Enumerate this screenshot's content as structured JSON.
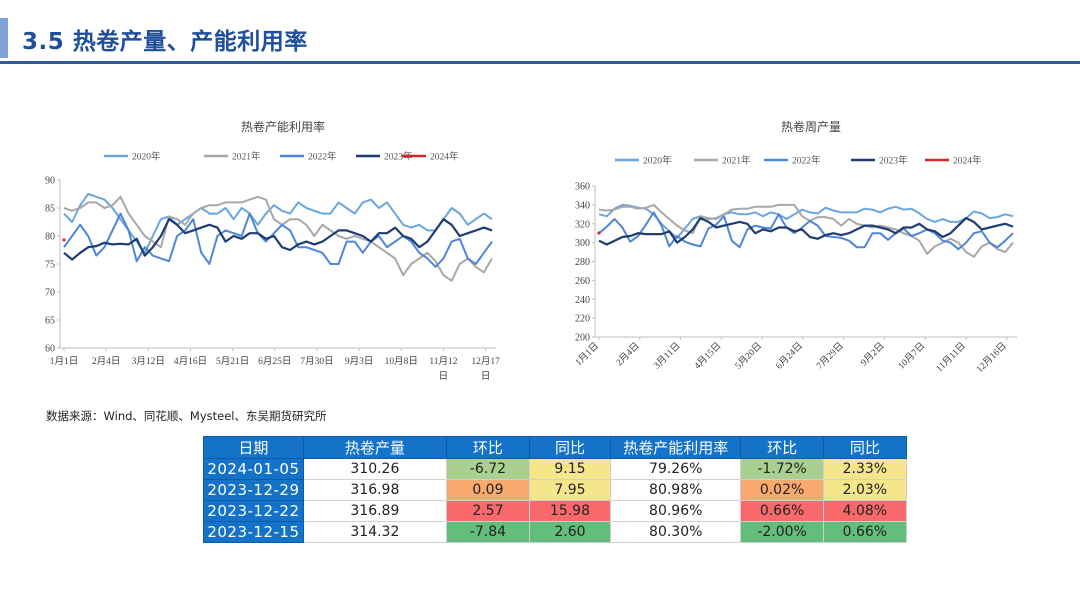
{
  "header": {
    "title": "3.5 热卷产量、产能利用率"
  },
  "source": "数据来源：Wind、同花顺、Mysteel、东吴期货研究所",
  "colors": {
    "s2020": "#6aa6de",
    "s2021": "#a8a8a8",
    "s2022": "#4f86d8",
    "s2023": "#1f3d73",
    "s2024": "#d62728",
    "green": "#63be7b",
    "lightGreen": "#a9d08e",
    "yellow": "#f5e68c",
    "orange": "#f8a96e",
    "red": "#f8696b",
    "header": "#1572c9"
  },
  "chart_data": [
    {
      "type": "line",
      "title": "热卷产能利用率",
      "ylim": [
        60,
        90
      ],
      "yticks": [
        60,
        65,
        70,
        75,
        80,
        85,
        90
      ],
      "xticks": [
        "1月1日",
        "2月4日",
        "3月12日",
        "4月16日",
        "5月21日",
        "6月25日",
        "7月30日",
        "9月3日",
        "10月8日",
        "11月12",
        "12月17"
      ],
      "xticks_line2": [
        "",
        "",
        "",
        "",
        "",
        "",
        "",
        "",
        "",
        "日",
        "日"
      ],
      "legend": [
        "2020年",
        "2021年",
        "2022年",
        "2023年",
        "2024年"
      ],
      "series": [
        {
          "name": "2020年",
          "values": [
            84,
            82.5,
            85.5,
            87.5,
            87,
            86.5,
            85,
            83,
            81,
            79,
            77,
            80,
            83,
            83.5,
            82,
            83,
            84,
            85,
            84,
            84,
            85,
            83,
            85,
            84,
            82,
            84,
            85.5,
            84.5,
            84,
            86,
            85,
            84.5,
            84,
            84,
            86,
            85,
            84,
            86,
            86.5,
            85,
            86,
            84,
            82,
            81.5,
            82,
            81,
            81,
            83,
            85,
            84,
            82,
            83,
            84,
            83
          ]
        },
        {
          "name": "2021年",
          "values": [
            85,
            84.5,
            85,
            86,
            86,
            85,
            85.5,
            87,
            84,
            82,
            80,
            79,
            78,
            83.5,
            83,
            82,
            84,
            85,
            85.5,
            85.5,
            86,
            86,
            86,
            86.5,
            87,
            86.5,
            83,
            82,
            83,
            83,
            82,
            80,
            82,
            81,
            80,
            79.5,
            80,
            79.5,
            79,
            78,
            77,
            76,
            73,
            75,
            76,
            77,
            75.5,
            73,
            72,
            75,
            76,
            74.5,
            73.5,
            76
          ]
        },
        {
          "name": "2022年",
          "values": [
            78,
            80,
            82,
            80,
            76.5,
            78,
            81,
            84,
            81,
            75.5,
            78,
            76.5,
            76,
            75.5,
            80,
            81,
            83,
            77,
            75,
            80,
            81,
            80.5,
            80,
            84,
            80.5,
            79,
            80.5,
            82,
            81,
            78,
            78,
            77.5,
            77,
            75,
            75,
            79,
            79,
            77,
            79,
            80,
            78,
            79,
            80,
            79,
            77,
            76,
            74.5,
            76,
            79,
            79.5,
            76,
            75,
            77,
            79
          ]
        },
        {
          "name": "2023年",
          "values": [
            77,
            75.8,
            77,
            78,
            78.2,
            78.8,
            78.5,
            78.6,
            78.5,
            79.5,
            76.5,
            78,
            80,
            83,
            82,
            80.5,
            81,
            81.5,
            82,
            81.5,
            79,
            80,
            79.5,
            80.5,
            80.5,
            79.5,
            80,
            78,
            77.5,
            78.5,
            79,
            78.5,
            79,
            80,
            81,
            81,
            80.5,
            80,
            79,
            80.5,
            80.5,
            81.5,
            80,
            79.5,
            78,
            79,
            81,
            83,
            82,
            80,
            80.5,
            81,
            81.5,
            81
          ]
        },
        {
          "name": "2024年",
          "values": [
            79.3
          ]
        }
      ]
    },
    {
      "type": "line",
      "title": "热卷周产量",
      "ylim": [
        200,
        360
      ],
      "yticks": [
        200,
        220,
        240,
        260,
        280,
        300,
        320,
        340,
        360
      ],
      "xticks": [
        "1月1日",
        "2月4日",
        "3月11日",
        "4月15日",
        "5月20日",
        "6月24日",
        "7月29日",
        "9月2日",
        "10月7日",
        "11月11日",
        "12月16日"
      ],
      "legend": [
        "2020年",
        "2021年",
        "2022年",
        "2023年",
        "2024年"
      ],
      "series": [
        {
          "name": "2020年",
          "values": [
            330,
            328,
            336,
            340,
            339,
            337,
            336,
            330,
            320,
            312,
            305,
            315,
            325,
            328,
            325,
            326,
            330,
            332,
            330,
            330,
            332,
            328,
            332,
            330,
            325,
            330,
            335,
            332,
            331,
            337,
            334,
            332,
            332,
            332,
            336,
            335,
            332,
            336,
            338,
            335,
            336,
            331,
            325,
            322,
            325,
            322,
            322,
            326,
            333,
            331,
            326,
            327,
            330,
            328
          ]
        },
        {
          "name": "2021年",
          "values": [
            335,
            334,
            335,
            338,
            338,
            336,
            337,
            340,
            332,
            325,
            318,
            313,
            310,
            328,
            326,
            325,
            330,
            335,
            336,
            336,
            338,
            338,
            338,
            340,
            340,
            340,
            328,
            323,
            327,
            327,
            325,
            318,
            325,
            320,
            318,
            316,
            318,
            316,
            314,
            310,
            307,
            302,
            288,
            296,
            300,
            304,
            300,
            290,
            285,
            296,
            300,
            293,
            290,
            300
          ]
        },
        {
          "name": "2022年",
          "values": [
            310,
            317,
            325,
            316,
            301,
            307,
            319,
            332,
            318,
            296,
            307,
            301,
            298,
            296,
            315,
            319,
            328,
            302,
            295,
            314,
            318,
            316,
            315,
            330,
            316,
            310,
            316,
            323,
            318,
            307,
            306,
            305,
            302,
            295,
            295,
            310,
            310,
            303,
            310,
            315,
            307,
            310,
            314,
            310,
            302,
            300,
            293,
            300,
            310,
            312,
            300,
            295,
            302,
            310
          ]
        },
        {
          "name": "2023年",
          "values": [
            302,
            298,
            302,
            306,
            307,
            310,
            309,
            309,
            309,
            312,
            300,
            306,
            314,
            326,
            322,
            316,
            318,
            320,
            322,
            320,
            310,
            314,
            312,
            316,
            316,
            312,
            314,
            306,
            304,
            308,
            310,
            308,
            310,
            314,
            318,
            318,
            316,
            314,
            310,
            316,
            316,
            320,
            314,
            312,
            306,
            310,
            318,
            326,
            322,
            314,
            316,
            318,
            320,
            317
          ]
        },
        {
          "name": "2024年",
          "values": [
            310.26
          ]
        }
      ]
    }
  ],
  "table": {
    "headers": [
      "日期",
      "热卷产量",
      "环比",
      "同比",
      "热卷产能利用率",
      "环比",
      "同比"
    ],
    "rows": [
      [
        "2024-01-05",
        "310.26",
        "-6.72",
        "9.15",
        "79.26%",
        "-1.72%",
        "2.33%"
      ],
      [
        "2023-12-29",
        "316.98",
        "0.09",
        "7.95",
        "80.98%",
        "0.02%",
        "2.03%"
      ],
      [
        "2023-12-22",
        "316.89",
        "2.57",
        "15.98",
        "80.96%",
        "0.66%",
        "4.08%"
      ],
      [
        "2023-12-15",
        "314.32",
        "-7.84",
        "2.60",
        "80.30%",
        "-2.00%",
        "0.66%"
      ]
    ]
  }
}
